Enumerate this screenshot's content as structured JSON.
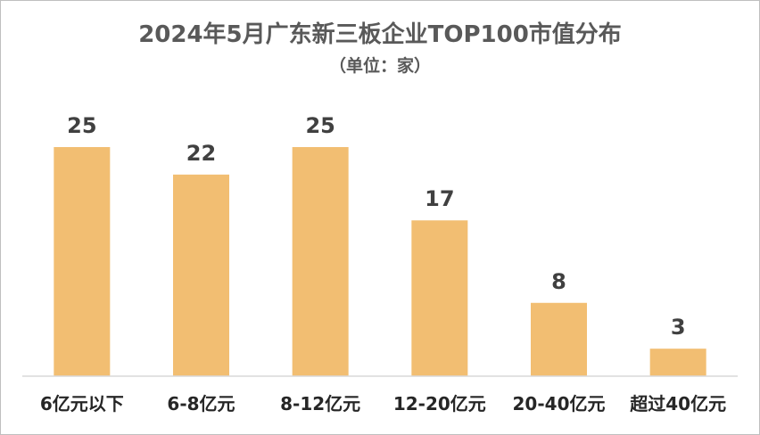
{
  "chart_data": {
    "type": "bar",
    "title": "2024年5月广东新三板企业TOP100市值分布",
    "subtitle": "（单位：家）",
    "categories": [
      "6亿元以下",
      "6-8亿元",
      "8-12亿元",
      "12-20亿元",
      "20-40亿元",
      "超过40亿元"
    ],
    "values": [
      25,
      22,
      25,
      17,
      8,
      3
    ],
    "ylim": [
      0,
      25
    ],
    "grid": false,
    "bar_color": "#F2BE72",
    "axis_color": "#d9d9d9"
  }
}
